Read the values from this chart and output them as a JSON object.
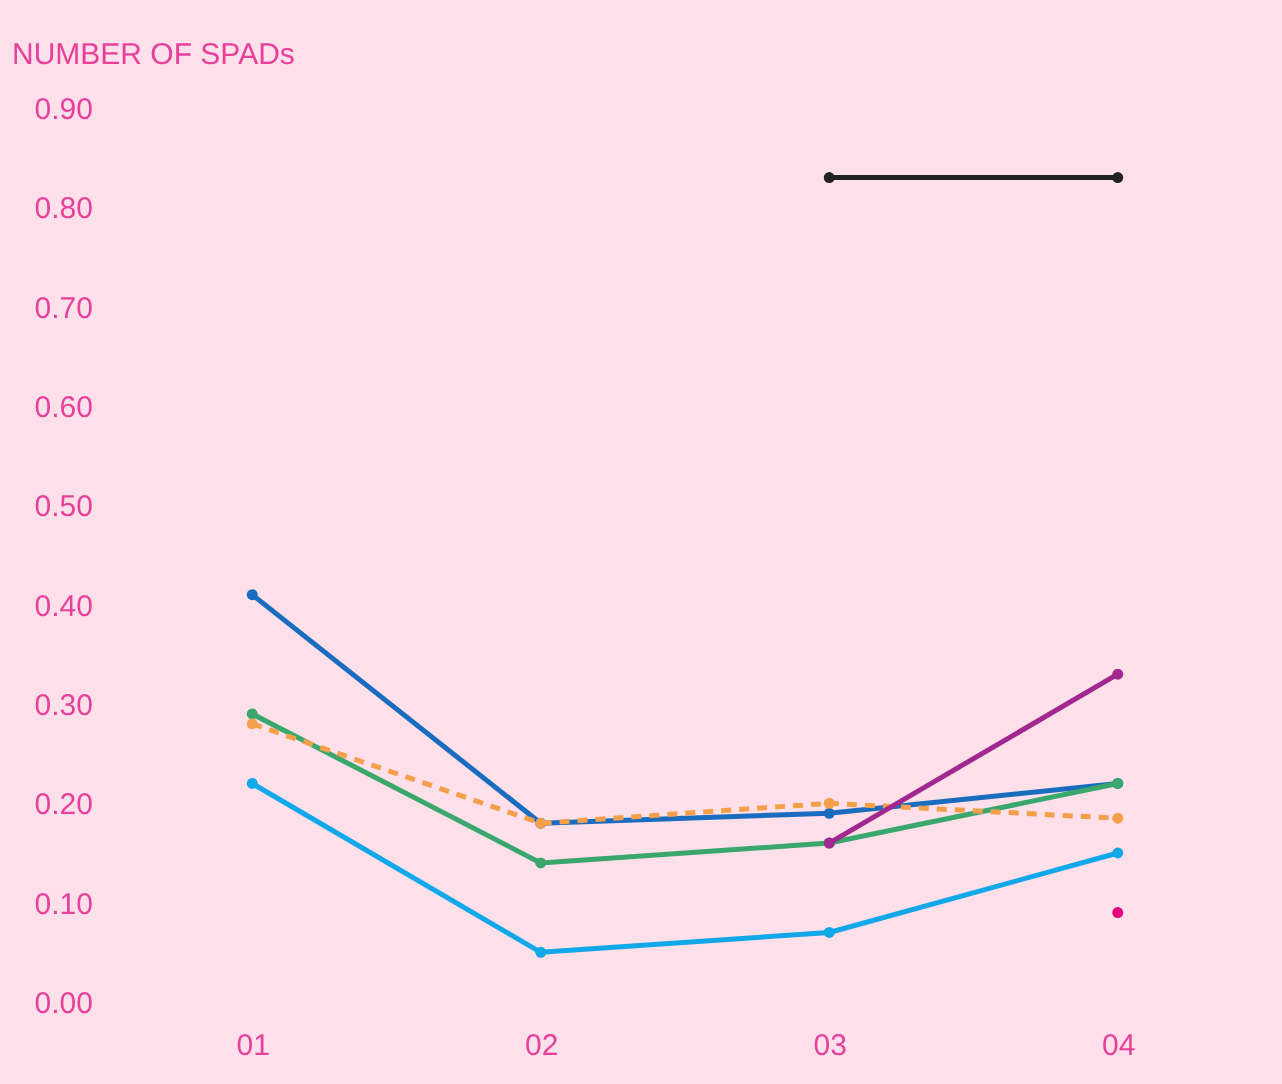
{
  "chart_data": {
    "type": "line",
    "ylabel": "NUMBER OF SPADs",
    "categories": [
      "01",
      "02",
      "03",
      "04"
    ],
    "ylim": [
      0,
      0.9
    ],
    "yticks": [
      {
        "value": 0,
        "label": "0.00"
      },
      {
        "value": 0.1,
        "label": "0.10"
      },
      {
        "value": 0.2,
        "label": "0.20"
      },
      {
        "value": 0.3,
        "label": "0.30"
      },
      {
        "value": 0.4,
        "label": "0.40"
      },
      {
        "value": 0.5,
        "label": "0.50"
      },
      {
        "value": 0.6,
        "label": "0.60"
      },
      {
        "value": 0.7,
        "label": "0.70"
      },
      {
        "value": 0.8,
        "label": "0.80"
      },
      {
        "value": 0.9,
        "label": "0.90"
      }
    ],
    "marker": "circle",
    "series": [
      {
        "color": "#1a6cbf",
        "values": [
          0.41,
          0.18,
          0.19,
          0.22
        ]
      },
      {
        "color": "#3aa76d",
        "values": [
          0.29,
          0.14,
          0.16,
          0.22
        ]
      },
      {
        "color": "#f4a04a",
        "values": [
          0.28,
          0.18,
          0.2,
          0.185
        ],
        "line_style": "dashed"
      },
      {
        "color": "#10a8e8",
        "values": [
          0.22,
          0.05,
          0.07,
          0.15
        ]
      },
      {
        "color": "#a0288f",
        "values": [
          null,
          null,
          0.16,
          0.33
        ]
      },
      {
        "color": "#222222",
        "values": [
          null,
          null,
          0.83,
          0.83
        ]
      },
      {
        "type": "scatter",
        "color": "#e6007e",
        "values": [
          null,
          null,
          null,
          0.09
        ]
      }
    ]
  }
}
